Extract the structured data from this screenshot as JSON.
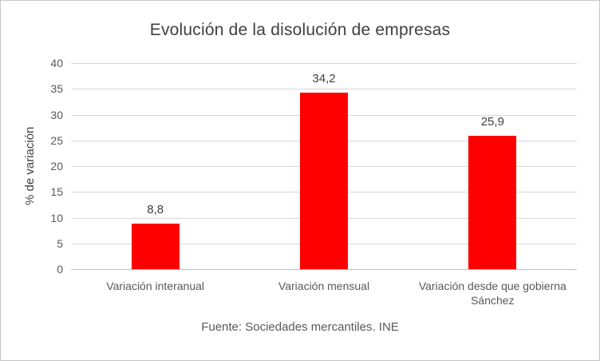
{
  "chart_data": {
    "type": "bar",
    "title": "Evolución de la disolución de empresas",
    "ylabel": "% de variación",
    "xlabel": "",
    "categories": [
      "Variación interanual",
      "Variación mensual",
      "Variación desde que gobierna Sánchez"
    ],
    "values": [
      8.8,
      34.2,
      25.9
    ],
    "value_labels": [
      "8,8",
      "34,2",
      "25,9"
    ],
    "ylim": [
      0,
      40
    ],
    "ytick_step": 5,
    "ytick_labels": [
      "0",
      "5",
      "10",
      "15",
      "20",
      "25",
      "30",
      "35",
      "40"
    ],
    "grid": true,
    "legend": false,
    "bar_color": "#FF0000",
    "source_note": "Fuente: Sociedades mercantiles. INE",
    "colors": {
      "grid": "#D9D9D9",
      "axis_line": "#BFBFBF",
      "title_text": "#404040",
      "tick_text": "#595959",
      "border": "#C6C6C6"
    }
  }
}
